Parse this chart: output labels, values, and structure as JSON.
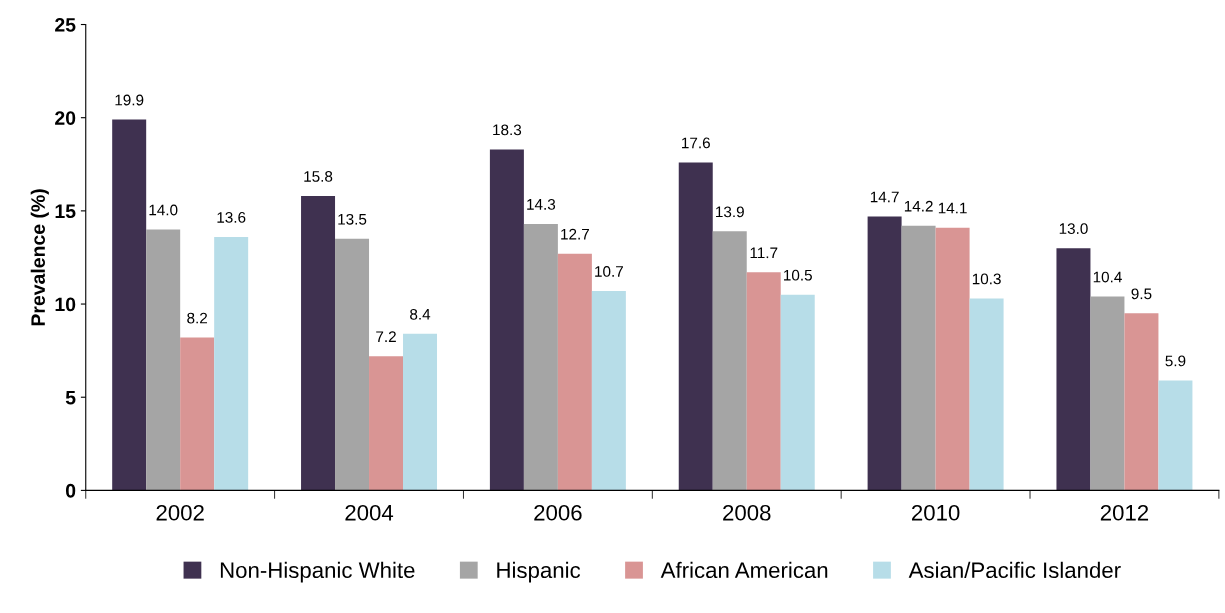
{
  "chart_data": {
    "type": "bar",
    "ylabel": "Prevalence (%)",
    "categories": [
      "2002",
      "2004",
      "2006",
      "2008",
      "2010",
      "2012"
    ],
    "series": [
      {
        "name": "Non-Hispanic White",
        "color": "#3f3150",
        "values": [
          19.9,
          15.8,
          18.3,
          17.6,
          14.7,
          13.0
        ],
        "value_labels": [
          "19.9",
          "15.8",
          "18.3",
          "17.6",
          "14.7",
          "13.0"
        ]
      },
      {
        "name": "Hispanic",
        "color": "#a5a5a5",
        "values": [
          14.0,
          13.5,
          14.3,
          13.9,
          14.2,
          10.4
        ],
        "value_labels": [
          "14.0",
          "13.5",
          "14.3",
          "13.9",
          "14.2",
          "10.4"
        ]
      },
      {
        "name": "African American",
        "color": "#d99594",
        "values": [
          8.2,
          7.2,
          12.7,
          11.7,
          14.1,
          9.5
        ],
        "value_labels": [
          "8.2",
          "7.2",
          "12.7",
          "11.7",
          "14.1",
          "9.5"
        ]
      },
      {
        "name": "Asian/Pacific Islander",
        "color": "#b7dde8",
        "values": [
          13.6,
          8.4,
          10.7,
          10.5,
          10.3,
          5.9
        ],
        "value_labels": [
          "13.6",
          "8.4",
          "10.7",
          "10.5",
          "10.3",
          "5.9"
        ]
      }
    ],
    "ylim": [
      0,
      25
    ],
    "yticks": [
      0,
      5,
      10,
      15,
      20,
      25
    ],
    "grid": false,
    "legend": "bottom"
  }
}
